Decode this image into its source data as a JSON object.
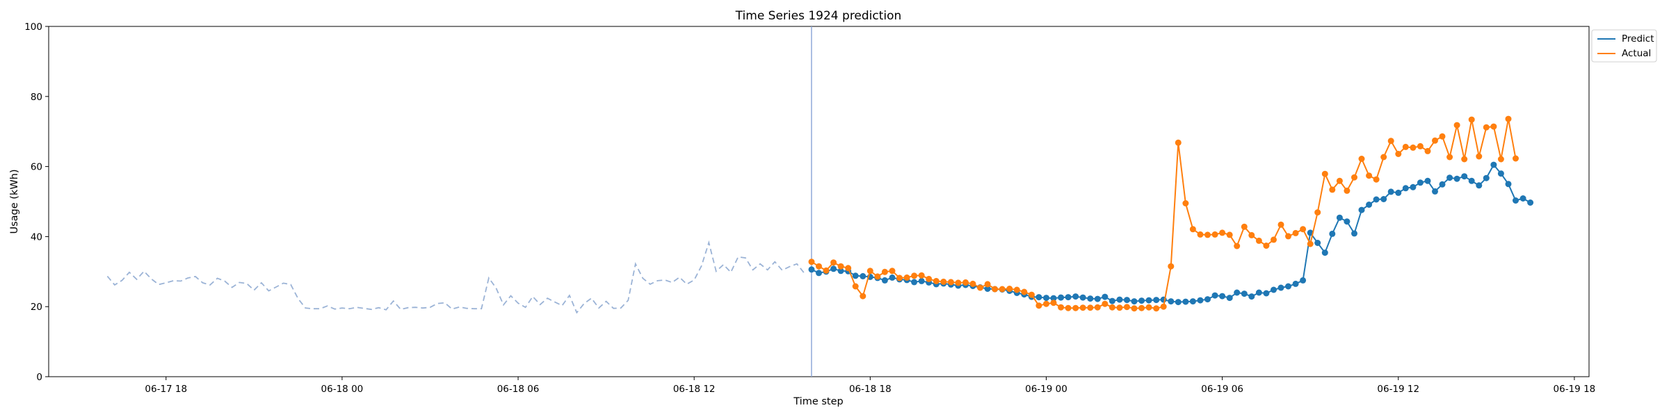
{
  "chart_data": {
    "type": "line",
    "title": "Time Series 1924 prediction",
    "xlabel": "Time step",
    "ylabel": "Usage (kWh)",
    "ylim": [
      0,
      100
    ],
    "y_ticks": [
      0,
      20,
      40,
      60,
      80,
      100
    ],
    "x_range": [
      "2025-06-17 14:00",
      "2025-06-19 18:30"
    ],
    "x_ticks": [
      {
        "t": "2025-06-17 18:00",
        "label": "06-17 18"
      },
      {
        "t": "2025-06-18 00:00",
        "label": "06-18 00"
      },
      {
        "t": "2025-06-18 06:00",
        "label": "06-18 06"
      },
      {
        "t": "2025-06-18 12:00",
        "label": "06-18 12"
      },
      {
        "t": "2025-06-18 18:00",
        "label": "06-18 18"
      },
      {
        "t": "2025-06-19 00:00",
        "label": "06-19 00"
      },
      {
        "t": "2025-06-19 06:00",
        "label": "06-19 06"
      },
      {
        "t": "2025-06-19 12:00",
        "label": "06-19 12"
      },
      {
        "t": "2025-06-19 18:00",
        "label": "06-19 18"
      }
    ],
    "forecast_start": "2025-06-18 16:00",
    "legend": {
      "placement": "top-right",
      "entries": [
        "Predict",
        "Actual"
      ]
    },
    "history": {
      "start": "2025-06-17 16:00",
      "step_minutes": 15,
      "color": "#9bb3d6",
      "values": [
        28.7,
        26.2,
        27.5,
        29.8,
        27.8,
        30.1,
        27.9,
        26.3,
        26.8,
        27.4,
        27.3,
        28.2,
        28.6,
        26.8,
        26.2,
        28.1,
        27.3,
        25.5,
        26.9,
        26.6,
        24.7,
        26.8,
        24.5,
        25.6,
        26.7,
        26.3,
        22.3,
        19.6,
        19.4,
        19.4,
        20.2,
        19.3,
        19.6,
        19.4,
        19.8,
        19.5,
        19.2,
        19.7,
        19.1,
        21.6,
        19.2,
        19.7,
        19.8,
        19.6,
        19.8,
        20.9,
        21.1,
        19.3,
        19.9,
        19.5,
        19.4,
        19.4,
        28.2,
        25.3,
        20.5,
        23.1,
        21.0,
        19.8,
        22.9,
        20.6,
        22.4,
        21.3,
        20.3,
        23.2,
        18.3,
        20.9,
        22.4,
        19.6,
        21.5,
        19.5,
        19.6,
        21.8,
        32.2,
        28.1,
        26.4,
        27.4,
        27.6,
        26.9,
        28.4,
        26.4,
        27.6,
        31.6,
        38.3,
        30.1,
        32.0,
        29.8,
        34.2,
        33.9,
        30.5,
        32.2,
        30.5,
        32.8,
        30.4,
        31.4,
        32.2,
        29.6
      ]
    },
    "series": [
      {
        "name": "Predict",
        "color": "#1f77b4",
        "start": "2025-06-18 16:00",
        "step_minutes": 15,
        "values": [
          30.6,
          29.6,
          30.0,
          30.8,
          30.2,
          30.1,
          28.8,
          28.7,
          28.5,
          28.2,
          27.5,
          28.3,
          27.8,
          27.6,
          27.0,
          27.3,
          26.9,
          26.4,
          26.6,
          26.3,
          26.0,
          26.2,
          25.9,
          25.5,
          25.1,
          25.0,
          24.9,
          24.5,
          23.9,
          23.5,
          22.8,
          22.7,
          22.5,
          22.4,
          22.6,
          22.7,
          22.9,
          22.6,
          22.3,
          22.2,
          22.8,
          21.6,
          22.0,
          21.9,
          21.5,
          21.7,
          21.8,
          21.9,
          22.0,
          21.5,
          21.3,
          21.4,
          21.5,
          21.8,
          22.1,
          23.2,
          23.0,
          22.5,
          24.0,
          23.7,
          22.9,
          24.0,
          23.8,
          24.8,
          25.4,
          25.8,
          26.5,
          27.5,
          41.1,
          38.2,
          35.4,
          40.8,
          45.4,
          44.3,
          40.9,
          47.6,
          49.1,
          50.6,
          50.7,
          52.8,
          52.5,
          53.8,
          54.1,
          55.4,
          55.9,
          52.9,
          54.9,
          56.8,
          56.5,
          57.2,
          55.9,
          54.6,
          56.7,
          60.5,
          58.0,
          55.0,
          50.3,
          50.9,
          49.7
        ]
      },
      {
        "name": "Actual",
        "color": "#ff7f0e",
        "start": "2025-06-18 16:00",
        "step_minutes": 15,
        "values": [
          32.8,
          31.5,
          30.3,
          32.6,
          31.5,
          31.0,
          25.8,
          23.0,
          30.2,
          28.6,
          29.9,
          30.2,
          28.2,
          28.3,
          28.8,
          28.9,
          27.9,
          27.3,
          27.1,
          27.0,
          26.8,
          26.9,
          26.5,
          25.4,
          26.4,
          25.0,
          25.0,
          25.1,
          24.8,
          24.2,
          23.4,
          20.3,
          20.8,
          21.1,
          19.8,
          19.6,
          19.6,
          19.7,
          19.7,
          19.8,
          20.8,
          19.8,
          19.7,
          19.9,
          19.5,
          19.6,
          19.8,
          19.5,
          20.0,
          31.5,
          66.8,
          49.5,
          42.1,
          40.6,
          40.5,
          40.6,
          41.1,
          40.5,
          37.3,
          42.8,
          40.4,
          38.8,
          37.4,
          39.1,
          43.4,
          40.1,
          41.0,
          42.1,
          37.9,
          46.9,
          57.9,
          53.4,
          55.9,
          53.1,
          56.9,
          62.2,
          57.4,
          56.3,
          62.7,
          67.3,
          63.6,
          65.6,
          65.4,
          65.8,
          64.4,
          67.4,
          68.6,
          62.7,
          71.8,
          62.1,
          73.4,
          62.9,
          71.2,
          71.4,
          62.1,
          73.6,
          62.3
        ]
      }
    ]
  }
}
